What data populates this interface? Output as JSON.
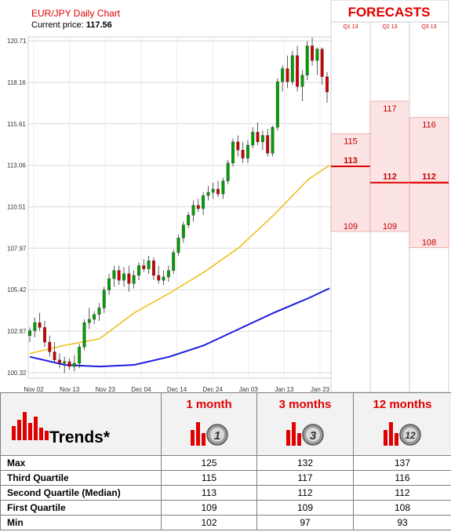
{
  "chart_data": {
    "type": "candlestick",
    "title": "EUR/JPY Daily Chart",
    "current_price_label": "Current price:",
    "current_price": "117.56",
    "y_ticks": [
      "120.71",
      "118.16",
      "115.61",
      "113.06",
      "110.51",
      "107.97",
      "105.42",
      "102.87",
      "100.32"
    ],
    "y_range": [
      100.32,
      120.71
    ],
    "x_ticks": [
      "Nov 02",
      "Nov 13",
      "Nov 23",
      "Dec 04",
      "Dec 14",
      "Dec 24",
      "Jan 03",
      "Jan 13",
      "Jan 23"
    ],
    "candles": [
      {
        "o": 102.6,
        "h": 103.1,
        "l": 102.2,
        "c": 102.9
      },
      {
        "o": 102.9,
        "h": 103.7,
        "l": 102.5,
        "c": 103.4
      },
      {
        "o": 103.4,
        "h": 104.0,
        "l": 102.9,
        "c": 103.1
      },
      {
        "o": 103.1,
        "h": 103.5,
        "l": 101.9,
        "c": 102.2
      },
      {
        "o": 102.2,
        "h": 102.6,
        "l": 101.3,
        "c": 101.6
      },
      {
        "o": 101.6,
        "h": 102.2,
        "l": 100.9,
        "c": 101.1
      },
      {
        "o": 101.1,
        "h": 101.5,
        "l": 100.6,
        "c": 100.9
      },
      {
        "o": 100.9,
        "h": 101.3,
        "l": 100.3,
        "c": 101.0
      },
      {
        "o": 101.0,
        "h": 101.2,
        "l": 100.5,
        "c": 100.7
      },
      {
        "o": 100.7,
        "h": 101.4,
        "l": 100.4,
        "c": 100.9
      },
      {
        "o": 100.9,
        "h": 102.1,
        "l": 100.6,
        "c": 101.9
      },
      {
        "o": 101.9,
        "h": 103.6,
        "l": 101.7,
        "c": 103.4
      },
      {
        "o": 103.4,
        "h": 104.3,
        "l": 103.0,
        "c": 103.6
      },
      {
        "o": 103.6,
        "h": 104.1,
        "l": 103.3,
        "c": 103.9
      },
      {
        "o": 103.9,
        "h": 104.6,
        "l": 103.5,
        "c": 104.3
      },
      {
        "o": 104.3,
        "h": 105.6,
        "l": 104.0,
        "c": 105.4
      },
      {
        "o": 105.4,
        "h": 106.4,
        "l": 105.1,
        "c": 106.1
      },
      {
        "o": 106.1,
        "h": 106.9,
        "l": 105.6,
        "c": 106.6
      },
      {
        "o": 106.6,
        "h": 106.9,
        "l": 105.7,
        "c": 106.0
      },
      {
        "o": 106.0,
        "h": 106.8,
        "l": 105.6,
        "c": 106.4
      },
      {
        "o": 106.4,
        "h": 106.9,
        "l": 105.3,
        "c": 105.8
      },
      {
        "o": 105.8,
        "h": 106.6,
        "l": 105.5,
        "c": 106.3
      },
      {
        "o": 106.3,
        "h": 107.1,
        "l": 106.0,
        "c": 106.9
      },
      {
        "o": 106.9,
        "h": 107.3,
        "l": 106.5,
        "c": 106.7
      },
      {
        "o": 106.7,
        "h": 107.5,
        "l": 106.4,
        "c": 107.2
      },
      {
        "o": 107.2,
        "h": 107.4,
        "l": 106.0,
        "c": 106.3
      },
      {
        "o": 106.3,
        "h": 106.9,
        "l": 105.8,
        "c": 106.0
      },
      {
        "o": 106.0,
        "h": 106.6,
        "l": 105.7,
        "c": 106.2
      },
      {
        "o": 106.2,
        "h": 106.9,
        "l": 105.9,
        "c": 106.6
      },
      {
        "o": 106.6,
        "h": 107.9,
        "l": 106.4,
        "c": 107.7
      },
      {
        "o": 107.7,
        "h": 108.8,
        "l": 107.5,
        "c": 108.6
      },
      {
        "o": 108.6,
        "h": 109.6,
        "l": 108.3,
        "c": 109.4
      },
      {
        "o": 109.4,
        "h": 110.2,
        "l": 109.2,
        "c": 110.0
      },
      {
        "o": 110.0,
        "h": 110.9,
        "l": 109.6,
        "c": 110.6
      },
      {
        "o": 110.6,
        "h": 111.0,
        "l": 110.2,
        "c": 110.4
      },
      {
        "o": 110.4,
        "h": 111.4,
        "l": 110.0,
        "c": 111.2
      },
      {
        "o": 111.2,
        "h": 111.8,
        "l": 110.9,
        "c": 111.4
      },
      {
        "o": 111.4,
        "h": 112.0,
        "l": 111.0,
        "c": 111.6
      },
      {
        "o": 111.6,
        "h": 112.1,
        "l": 111.1,
        "c": 111.3
      },
      {
        "o": 111.3,
        "h": 112.3,
        "l": 111.0,
        "c": 112.1
      },
      {
        "o": 112.1,
        "h": 113.4,
        "l": 111.9,
        "c": 113.2
      },
      {
        "o": 113.2,
        "h": 114.7,
        "l": 113.0,
        "c": 114.5
      },
      {
        "o": 114.5,
        "h": 114.9,
        "l": 113.6,
        "c": 114.0
      },
      {
        "o": 114.0,
        "h": 114.5,
        "l": 113.2,
        "c": 113.5
      },
      {
        "o": 113.5,
        "h": 114.6,
        "l": 113.2,
        "c": 114.3
      },
      {
        "o": 114.3,
        "h": 115.4,
        "l": 114.1,
        "c": 115.1
      },
      {
        "o": 115.1,
        "h": 115.7,
        "l": 114.3,
        "c": 114.5
      },
      {
        "o": 114.5,
        "h": 115.2,
        "l": 114.0,
        "c": 114.9
      },
      {
        "o": 114.9,
        "h": 115.3,
        "l": 113.6,
        "c": 113.8
      },
      {
        "o": 113.8,
        "h": 115.5,
        "l": 113.6,
        "c": 115.4
      },
      {
        "o": 115.4,
        "h": 118.4,
        "l": 115.2,
        "c": 118.2
      },
      {
        "o": 118.2,
        "h": 119.2,
        "l": 117.6,
        "c": 119.0
      },
      {
        "o": 119.0,
        "h": 119.8,
        "l": 117.8,
        "c": 118.2
      },
      {
        "o": 118.2,
        "h": 120.1,
        "l": 118.0,
        "c": 119.8
      },
      {
        "o": 119.8,
        "h": 120.4,
        "l": 117.6,
        "c": 117.9
      },
      {
        "o": 117.9,
        "h": 118.9,
        "l": 117.0,
        "c": 118.6
      },
      {
        "o": 118.6,
        "h": 120.7,
        "l": 118.3,
        "c": 120.4
      },
      {
        "o": 120.4,
        "h": 120.9,
        "l": 119.2,
        "c": 119.5
      },
      {
        "o": 119.5,
        "h": 120.3,
        "l": 118.6,
        "c": 120.2
      },
      {
        "o": 120.2,
        "h": 120.3,
        "l": 118.0,
        "c": 118.5
      },
      {
        "o": 118.5,
        "h": 118.8,
        "l": 116.9,
        "c": 117.56
      }
    ],
    "ma_fast": [
      [
        0,
        101.5
      ],
      [
        10,
        102.0
      ],
      [
        20,
        102.4
      ],
      [
        30,
        104.0
      ],
      [
        40,
        105.2
      ],
      [
        50,
        106.5
      ],
      [
        60,
        108.0
      ],
      [
        70,
        110.0
      ],
      [
        80,
        112.2
      ],
      [
        86,
        113.06
      ]
    ],
    "ma_slow": [
      [
        0,
        101.3
      ],
      [
        10,
        100.8
      ],
      [
        20,
        100.7
      ],
      [
        30,
        100.8
      ],
      [
        40,
        101.3
      ],
      [
        50,
        102.0
      ],
      [
        60,
        103.0
      ],
      [
        70,
        104.0
      ],
      [
        80,
        104.9
      ],
      [
        86,
        105.5
      ]
    ],
    "ma_fast_color": "#f0c020",
    "ma_slow_color": "#1c1ce0",
    "bull_color": "#00a000",
    "bear_color": "#d00000"
  },
  "forecasts": {
    "title": "FORECASTS",
    "columns": [
      {
        "label": "Q1 13",
        "high": 115,
        "median": 113,
        "low": 109,
        "high_label": "115",
        "median_label": "113",
        "low_label": "109"
      },
      {
        "label": "Q2 13",
        "high": 117,
        "median": 112,
        "low": 109,
        "high_label": "117",
        "median_label": "112",
        "low_label": "109"
      },
      {
        "label": "Q3 13",
        "high": 116,
        "median": 112,
        "low": 108,
        "high_label": "116",
        "median_label": "112",
        "low_label": "108"
      }
    ],
    "band_color": "#fde4e4",
    "line_color": "#e00000"
  },
  "trends": {
    "title": "Trends*",
    "headers": [
      "1 month",
      "3 months",
      "12 months"
    ],
    "icon_numbers": [
      "1",
      "3",
      "12"
    ],
    "rows": [
      {
        "label": "Max",
        "values": [
          "125",
          "132",
          "137"
        ]
      },
      {
        "label": "Third Quartile",
        "values": [
          "115",
          "117",
          "116"
        ]
      },
      {
        "label": "Second Quartile (Median)",
        "values": [
          "113",
          "112",
          "112"
        ]
      },
      {
        "label": "First Quartile",
        "values": [
          "109",
          "109",
          "108"
        ]
      },
      {
        "label": "Min",
        "values": [
          "102",
          "97",
          "93"
        ]
      }
    ]
  }
}
